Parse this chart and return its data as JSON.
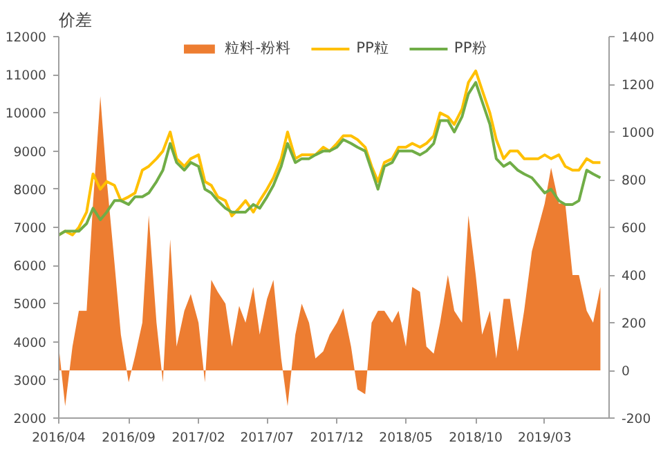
{
  "chart_data": {
    "type": "line",
    "ylabel": "价差",
    "legend": "top",
    "grid": false,
    "xlim": [
      "2016-04",
      "2019-07-20"
    ],
    "xticks": [
      {
        "value": "2016-04",
        "label": "2016/04"
      },
      {
        "value": "2016-09",
        "label": "2016/09"
      },
      {
        "value": "2017-02",
        "label": "2017/02"
      },
      {
        "value": "2017-07",
        "label": "2017/07"
      },
      {
        "value": "2017-12",
        "label": "2017/12"
      },
      {
        "value": "2018-05",
        "label": "2018/05"
      },
      {
        "value": "2018-10",
        "label": "2018/10"
      },
      {
        "value": "2019-03",
        "label": "2019/03"
      }
    ],
    "ylim": [
      2000,
      12000
    ],
    "yticks": [
      2000,
      3000,
      4000,
      5000,
      6000,
      7000,
      8000,
      9000,
      10000,
      11000,
      12000
    ],
    "y2lim": [
      -200,
      1400
    ],
    "y2ticks": [
      -200,
      0,
      200,
      400,
      600,
      800,
      1000,
      1200,
      1400
    ],
    "x": [
      "2016-04-01",
      "2016-04-15",
      "2016-05-01",
      "2016-05-15",
      "2016-06-01",
      "2016-06-15",
      "2016-07-01",
      "2016-07-15",
      "2016-08-01",
      "2016-08-15",
      "2016-09-01",
      "2016-09-15",
      "2016-10-01",
      "2016-10-15",
      "2016-11-01",
      "2016-11-15",
      "2016-12-01",
      "2016-12-15",
      "2017-01-01",
      "2017-01-15",
      "2017-02-01",
      "2017-02-15",
      "2017-03-01",
      "2017-03-15",
      "2017-04-01",
      "2017-04-15",
      "2017-05-01",
      "2017-05-15",
      "2017-06-01",
      "2017-06-15",
      "2017-07-01",
      "2017-07-15",
      "2017-08-01",
      "2017-08-15",
      "2017-09-01",
      "2017-09-15",
      "2017-10-01",
      "2017-10-15",
      "2017-11-01",
      "2017-11-15",
      "2017-12-01",
      "2017-12-15",
      "2018-01-01",
      "2018-01-15",
      "2018-02-01",
      "2018-02-15",
      "2018-03-01",
      "2018-03-15",
      "2018-04-01",
      "2018-04-15",
      "2018-05-01",
      "2018-05-15",
      "2018-06-01",
      "2018-06-15",
      "2018-07-01",
      "2018-07-15",
      "2018-08-01",
      "2018-08-15",
      "2018-09-01",
      "2018-09-15",
      "2018-10-01",
      "2018-10-15",
      "2018-11-01",
      "2018-11-15",
      "2018-12-01",
      "2018-12-15",
      "2019-01-01",
      "2019-01-15",
      "2019-02-01",
      "2019-02-15",
      "2019-03-01",
      "2019-03-15",
      "2019-04-01",
      "2019-04-15",
      "2019-05-01",
      "2019-05-15",
      "2019-06-01",
      "2019-06-15",
      "2019-07-01"
    ],
    "series": [
      {
        "name": "粒料-粉料",
        "type": "area",
        "axis": "y2",
        "color": "#ed7d31",
        "values": [
          100,
          -150,
          100,
          250,
          250,
          700,
          1150,
          800,
          450,
          150,
          -50,
          60,
          200,
          650,
          200,
          -50,
          550,
          100,
          250,
          320,
          200,
          -50,
          380,
          330,
          280,
          100,
          270,
          200,
          350,
          150,
          300,
          380,
          50,
          -150,
          150,
          280,
          200,
          50,
          80,
          150,
          200,
          260,
          100,
          -80,
          -100,
          200,
          250,
          250,
          200,
          250,
          100,
          350,
          330,
          100,
          70,
          200,
          400,
          250,
          200,
          650,
          400,
          150,
          250,
          50,
          300,
          300,
          80,
          250,
          500,
          600,
          700,
          850,
          700,
          700,
          400,
          400,
          250,
          200,
          350
        ]
      },
      {
        "name": "PP粒",
        "color": "#ffc000",
        "values": [
          6800,
          6900,
          6800,
          7000,
          7400,
          8400,
          8000,
          8200,
          8100,
          7700,
          7800,
          7900,
          8500,
          8600,
          8800,
          9000,
          9500,
          8800,
          8600,
          8800,
          8900,
          8200,
          8100,
          7800,
          7700,
          7300,
          7500,
          7700,
          7400,
          7700,
          8000,
          8300,
          8800,
          9500,
          8800,
          8900,
          8900,
          8900,
          9100,
          9000,
          9200,
          9400,
          9400,
          9300,
          9100,
          8600,
          8200,
          8700,
          8800,
          9100,
          9100,
          9200,
          9100,
          9200,
          9400,
          10000,
          9900,
          9700,
          10100,
          10800,
          11100,
          10600,
          10000,
          9300,
          8800,
          9000,
          9000,
          8800,
          8800,
          8800,
          8900,
          8800,
          8900,
          8600,
          8500,
          8500,
          8800,
          8700,
          8700
        ]
      },
      {
        "name": "PP粉",
        "color": "#70ad47",
        "values": [
          6800,
          6900,
          6900,
          6900,
          7100,
          7500,
          7200,
          7400,
          7700,
          7700,
          7600,
          7800,
          7800,
          7900,
          8200,
          8500,
          9200,
          8700,
          8500,
          8700,
          8600,
          8000,
          7900,
          7700,
          7500,
          7400,
          7400,
          7400,
          7600,
          7500,
          7800,
          8100,
          8600,
          9200,
          8700,
          8800,
          8800,
          8900,
          9000,
          9000,
          9100,
          9300,
          9200,
          9100,
          9000,
          8500,
          8000,
          8600,
          8700,
          9000,
          9000,
          9000,
          8900,
          9000,
          9200,
          9800,
          9800,
          9500,
          9900,
          10500,
          10800,
          10300,
          9700,
          8800,
          8600,
          8700,
          8500,
          8400,
          8300,
          8100,
          7900,
          8000,
          7700,
          7600,
          7600,
          7700,
          8500,
          8400,
          8300
        ]
      }
    ]
  }
}
